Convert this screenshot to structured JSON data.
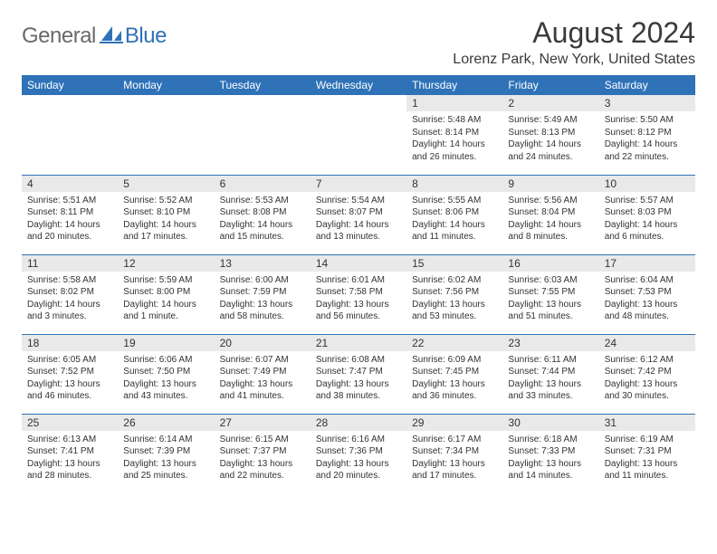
{
  "logo": {
    "general": "General",
    "blue": "Blue"
  },
  "title": "August 2024",
  "location": "Lorenz Park, New York, United States",
  "colors": {
    "header_bg": "#2f72b8",
    "header_text": "#ffffff",
    "daynum_bg": "#e9e9e9",
    "rule": "#2f72b8",
    "logo_gray": "#6a6a6a",
    "logo_blue": "#2f72b8"
  },
  "daynames": [
    "Sunday",
    "Monday",
    "Tuesday",
    "Wednesday",
    "Thursday",
    "Friday",
    "Saturday"
  ],
  "weeks": [
    [
      null,
      null,
      null,
      null,
      {
        "n": "1",
        "sr": "Sunrise: 5:48 AM",
        "ss": "Sunset: 8:14 PM",
        "d1": "Daylight: 14 hours",
        "d2": "and 26 minutes."
      },
      {
        "n": "2",
        "sr": "Sunrise: 5:49 AM",
        "ss": "Sunset: 8:13 PM",
        "d1": "Daylight: 14 hours",
        "d2": "and 24 minutes."
      },
      {
        "n": "3",
        "sr": "Sunrise: 5:50 AM",
        "ss": "Sunset: 8:12 PM",
        "d1": "Daylight: 14 hours",
        "d2": "and 22 minutes."
      }
    ],
    [
      {
        "n": "4",
        "sr": "Sunrise: 5:51 AM",
        "ss": "Sunset: 8:11 PM",
        "d1": "Daylight: 14 hours",
        "d2": "and 20 minutes."
      },
      {
        "n": "5",
        "sr": "Sunrise: 5:52 AM",
        "ss": "Sunset: 8:10 PM",
        "d1": "Daylight: 14 hours",
        "d2": "and 17 minutes."
      },
      {
        "n": "6",
        "sr": "Sunrise: 5:53 AM",
        "ss": "Sunset: 8:08 PM",
        "d1": "Daylight: 14 hours",
        "d2": "and 15 minutes."
      },
      {
        "n": "7",
        "sr": "Sunrise: 5:54 AM",
        "ss": "Sunset: 8:07 PM",
        "d1": "Daylight: 14 hours",
        "d2": "and 13 minutes."
      },
      {
        "n": "8",
        "sr": "Sunrise: 5:55 AM",
        "ss": "Sunset: 8:06 PM",
        "d1": "Daylight: 14 hours",
        "d2": "and 11 minutes."
      },
      {
        "n": "9",
        "sr": "Sunrise: 5:56 AM",
        "ss": "Sunset: 8:04 PM",
        "d1": "Daylight: 14 hours",
        "d2": "and 8 minutes."
      },
      {
        "n": "10",
        "sr": "Sunrise: 5:57 AM",
        "ss": "Sunset: 8:03 PM",
        "d1": "Daylight: 14 hours",
        "d2": "and 6 minutes."
      }
    ],
    [
      {
        "n": "11",
        "sr": "Sunrise: 5:58 AM",
        "ss": "Sunset: 8:02 PM",
        "d1": "Daylight: 14 hours",
        "d2": "and 3 minutes."
      },
      {
        "n": "12",
        "sr": "Sunrise: 5:59 AM",
        "ss": "Sunset: 8:00 PM",
        "d1": "Daylight: 14 hours",
        "d2": "and 1 minute."
      },
      {
        "n": "13",
        "sr": "Sunrise: 6:00 AM",
        "ss": "Sunset: 7:59 PM",
        "d1": "Daylight: 13 hours",
        "d2": "and 58 minutes."
      },
      {
        "n": "14",
        "sr": "Sunrise: 6:01 AM",
        "ss": "Sunset: 7:58 PM",
        "d1": "Daylight: 13 hours",
        "d2": "and 56 minutes."
      },
      {
        "n": "15",
        "sr": "Sunrise: 6:02 AM",
        "ss": "Sunset: 7:56 PM",
        "d1": "Daylight: 13 hours",
        "d2": "and 53 minutes."
      },
      {
        "n": "16",
        "sr": "Sunrise: 6:03 AM",
        "ss": "Sunset: 7:55 PM",
        "d1": "Daylight: 13 hours",
        "d2": "and 51 minutes."
      },
      {
        "n": "17",
        "sr": "Sunrise: 6:04 AM",
        "ss": "Sunset: 7:53 PM",
        "d1": "Daylight: 13 hours",
        "d2": "and 48 minutes."
      }
    ],
    [
      {
        "n": "18",
        "sr": "Sunrise: 6:05 AM",
        "ss": "Sunset: 7:52 PM",
        "d1": "Daylight: 13 hours",
        "d2": "and 46 minutes."
      },
      {
        "n": "19",
        "sr": "Sunrise: 6:06 AM",
        "ss": "Sunset: 7:50 PM",
        "d1": "Daylight: 13 hours",
        "d2": "and 43 minutes."
      },
      {
        "n": "20",
        "sr": "Sunrise: 6:07 AM",
        "ss": "Sunset: 7:49 PM",
        "d1": "Daylight: 13 hours",
        "d2": "and 41 minutes."
      },
      {
        "n": "21",
        "sr": "Sunrise: 6:08 AM",
        "ss": "Sunset: 7:47 PM",
        "d1": "Daylight: 13 hours",
        "d2": "and 38 minutes."
      },
      {
        "n": "22",
        "sr": "Sunrise: 6:09 AM",
        "ss": "Sunset: 7:45 PM",
        "d1": "Daylight: 13 hours",
        "d2": "and 36 minutes."
      },
      {
        "n": "23",
        "sr": "Sunrise: 6:11 AM",
        "ss": "Sunset: 7:44 PM",
        "d1": "Daylight: 13 hours",
        "d2": "and 33 minutes."
      },
      {
        "n": "24",
        "sr": "Sunrise: 6:12 AM",
        "ss": "Sunset: 7:42 PM",
        "d1": "Daylight: 13 hours",
        "d2": "and 30 minutes."
      }
    ],
    [
      {
        "n": "25",
        "sr": "Sunrise: 6:13 AM",
        "ss": "Sunset: 7:41 PM",
        "d1": "Daylight: 13 hours",
        "d2": "and 28 minutes."
      },
      {
        "n": "26",
        "sr": "Sunrise: 6:14 AM",
        "ss": "Sunset: 7:39 PM",
        "d1": "Daylight: 13 hours",
        "d2": "and 25 minutes."
      },
      {
        "n": "27",
        "sr": "Sunrise: 6:15 AM",
        "ss": "Sunset: 7:37 PM",
        "d1": "Daylight: 13 hours",
        "d2": "and 22 minutes."
      },
      {
        "n": "28",
        "sr": "Sunrise: 6:16 AM",
        "ss": "Sunset: 7:36 PM",
        "d1": "Daylight: 13 hours",
        "d2": "and 20 minutes."
      },
      {
        "n": "29",
        "sr": "Sunrise: 6:17 AM",
        "ss": "Sunset: 7:34 PM",
        "d1": "Daylight: 13 hours",
        "d2": "and 17 minutes."
      },
      {
        "n": "30",
        "sr": "Sunrise: 6:18 AM",
        "ss": "Sunset: 7:33 PM",
        "d1": "Daylight: 13 hours",
        "d2": "and 14 minutes."
      },
      {
        "n": "31",
        "sr": "Sunrise: 6:19 AM",
        "ss": "Sunset: 7:31 PM",
        "d1": "Daylight: 13 hours",
        "d2": "and 11 minutes."
      }
    ]
  ]
}
